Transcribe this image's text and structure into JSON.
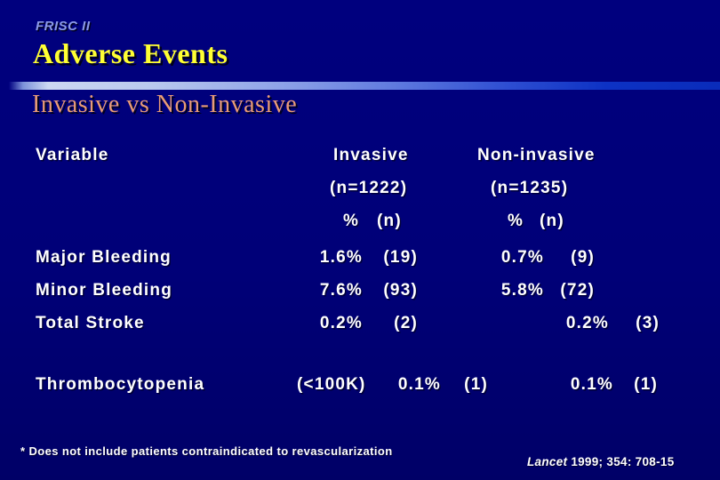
{
  "slide": {
    "eyebrow": "FRISC II",
    "title": "Adverse Events",
    "subtitle": "Invasive vs Non-Invasive"
  },
  "colors": {
    "background": "#000078",
    "eyebrow_text": "#8c9ae8",
    "title_text": "#ffff33",
    "subtitle_text": "#e79b78",
    "body_text": "#ffffff",
    "bar_gradient_light": "#ccd8f2",
    "bar_gradient_dark": "#0a2cba"
  },
  "table": {
    "variable_header": "Variable",
    "invasive": {
      "name": "Invasive",
      "n_label": "(n=1222)",
      "pct_header": "%",
      "count_header": "(n)"
    },
    "noninvasive": {
      "name": "Non-invasive",
      "n_label": "(n=1235)",
      "pct_header": "%",
      "count_header": "(n)"
    },
    "rows": [
      {
        "label": "Major Bleeding",
        "inv_pct": "1.6%",
        "inv_n": "(19)",
        "non_pct": "0.7%",
        "non_n": "(9)"
      },
      {
        "label": "Minor Bleeding",
        "inv_pct": "7.6%",
        "inv_n": "(93)",
        "non_pct": "5.8%",
        "non_n": "(72)"
      },
      {
        "label": "Total Stroke",
        "inv_pct": "0.2%",
        "inv_n": "(2)",
        "non_pct": "0.2%",
        "non_n": "(3)"
      },
      {
        "label": "Thrombocytopenia",
        "qualifier": "(<100K)",
        "inv_pct": "0.1%",
        "inv_n": "(1)",
        "non_pct": "0.1%",
        "non_n": "(1)"
      }
    ]
  },
  "footnote": "* Does not include patients contraindicated to revascularization",
  "citation": {
    "journal": "Lancet",
    "text": "1999; 354: 708-15"
  },
  "chart_data": {
    "type": "table",
    "title": "FRISC II — Adverse Events: Invasive vs Non-Invasive",
    "columns": [
      "Variable",
      "Invasive (n=1222) %",
      "Invasive (n=1222) (n)",
      "Non-invasive (n=1235) %",
      "Non-invasive (n=1235) (n)"
    ],
    "rows": [
      [
        "Major Bleeding",
        1.6,
        19,
        0.7,
        9
      ],
      [
        "Minor Bleeding",
        7.6,
        93,
        5.8,
        72
      ],
      [
        "Total Stroke",
        0.2,
        2,
        0.2,
        3
      ],
      [
        "Thrombocytopenia (<100K)",
        0.1,
        1,
        0.1,
        1
      ]
    ]
  }
}
